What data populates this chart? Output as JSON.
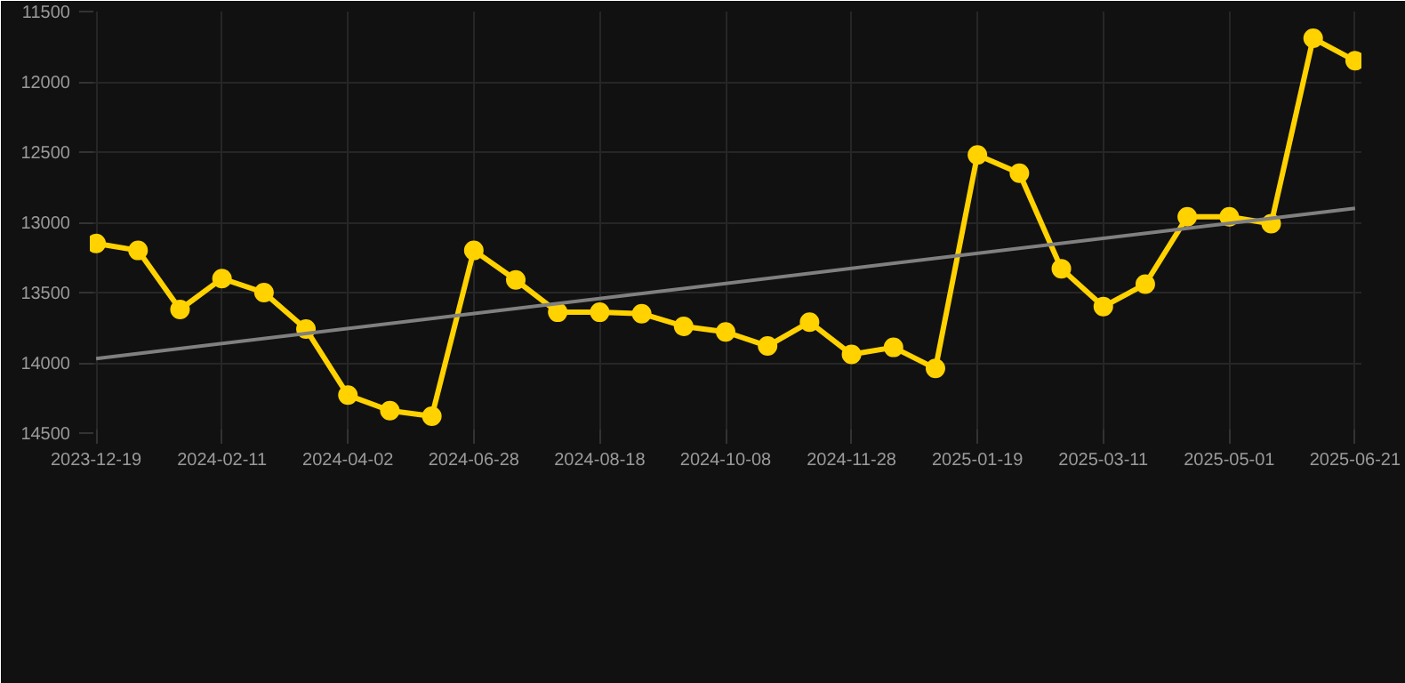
{
  "chart_data": {
    "type": "line",
    "categories": [
      "2023-12-19",
      null,
      null,
      "2024-02-11",
      null,
      null,
      "2024-04-02",
      null,
      null,
      "2024-06-28",
      null,
      null,
      "2024-08-18",
      null,
      null,
      "2024-10-08",
      null,
      null,
      "2024-11-28",
      null,
      null,
      "2025-01-19",
      null,
      null,
      "2025-03-11",
      null,
      null,
      "2025-05-01",
      null,
      null,
      "2025-06-21"
    ],
    "series": [
      {
        "color": "#ffd200",
        "values": [
          13150,
          13200,
          13620,
          13400,
          13500,
          13760,
          14230,
          14340,
          14380,
          13200,
          13410,
          13640,
          13640,
          13650,
          13740,
          13780,
          13880,
          13710,
          13940,
          13890,
          14040,
          12520,
          12650,
          13330,
          13600,
          13440,
          12960,
          12960,
          13010,
          11690,
          11850
        ],
        "marker": "circle"
      },
      {
        "type": "line",
        "color": "#808080",
        "values": [
          13970,
          null,
          null,
          null,
          null,
          null,
          null,
          null,
          null,
          null,
          null,
          null,
          null,
          null,
          null,
          null,
          null,
          null,
          null,
          null,
          null,
          null,
          null,
          null,
          null,
          null,
          null,
          null,
          null,
          null,
          12900
        ],
        "marker": "none"
      }
    ],
    "ylim": [
      14500,
      11500
    ],
    "yticks": [
      11500,
      12000,
      12500,
      13000,
      13500,
      14000,
      14500
    ],
    "grid": true
  }
}
